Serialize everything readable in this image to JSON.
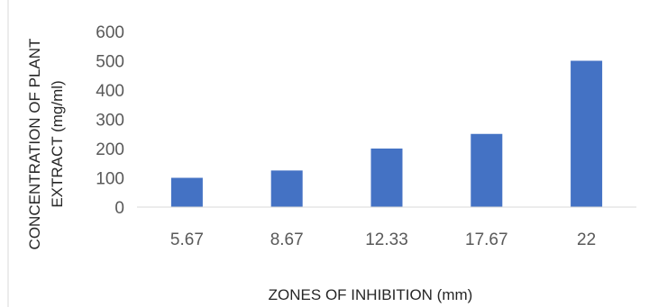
{
  "chart_data": {
    "type": "bar",
    "categories": [
      "5.67",
      "8.67",
      "12.33",
      "17.67",
      "22"
    ],
    "values": [
      100,
      125,
      200,
      250,
      500
    ],
    "title": "",
    "xlabel": "ZONES OF INHIBITION (mm)",
    "ylabel_lines": [
      "CONCENTRATION OF PLANT",
      "EXTRACT (mg/ml)"
    ],
    "ylim": [
      0,
      600
    ],
    "yticks": [
      0,
      100,
      200,
      300,
      400,
      500,
      600
    ],
    "grid": false,
    "legend": "none",
    "bar_color": "#4472C4",
    "axis_color": "#D9D9D9"
  }
}
